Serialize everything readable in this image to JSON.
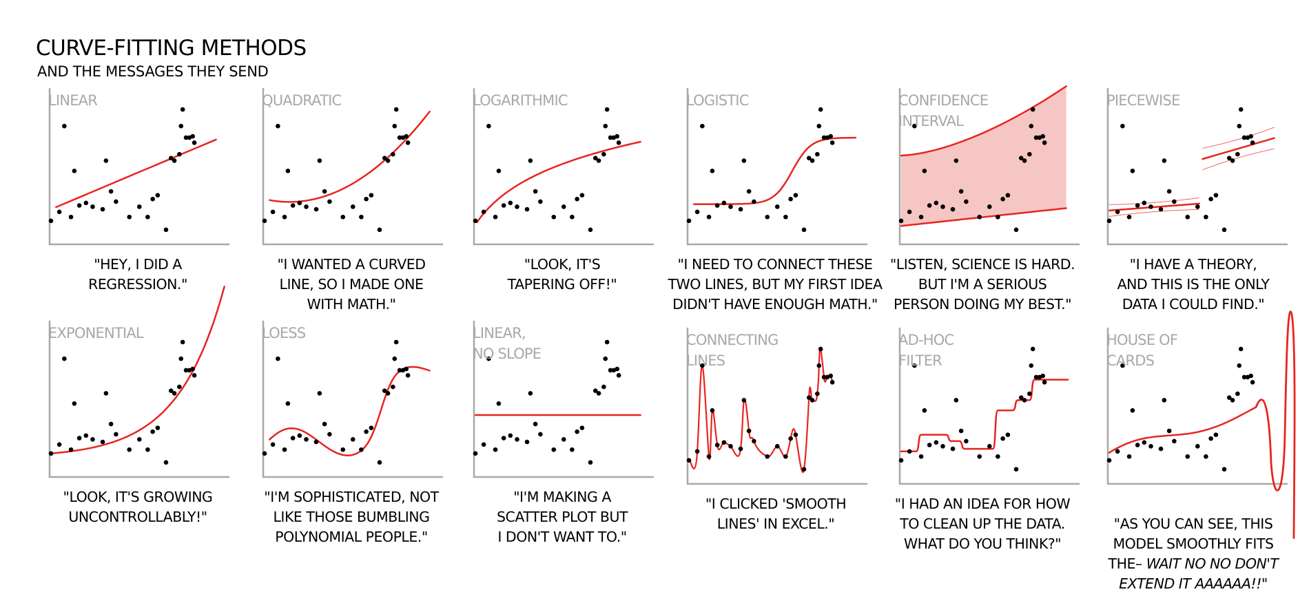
{
  "header": {
    "title": "CURVE-FITTING METHODS",
    "subtitle": "AND THE MESSAGES THEY SEND"
  },
  "colors": {
    "fit": "#e8241f",
    "band": "#f6c6c4",
    "axis": "#a8a8a8",
    "dot": "#000000",
    "label": "#a8a8a8"
  },
  "panels": [
    {
      "key": "linear",
      "title": "LINEAR",
      "caption": "\"HEY, I DID A\nREGRESSION.\""
    },
    {
      "key": "quadratic",
      "title": "QUADRATIC",
      "caption": "\"I WANTED A CURVED\nLINE, SO I MADE ONE\nWITH MATH.\""
    },
    {
      "key": "logarithmic",
      "title": "LOGARITHMIC",
      "caption": "\"LOOK, IT'S\nTAPERING OFF!\""
    },
    {
      "key": "logistic",
      "title": "LOGISTIC",
      "caption": "\"I NEED TO CONNECT THESE\nTWO LINES, BUT MY FIRST IDEA\nDIDN'T HAVE ENOUGH MATH.\""
    },
    {
      "key": "confidence",
      "title": "CONFIDENCE\nINTERVAL",
      "caption": "\"LISTEN, SCIENCE IS HARD.\nBUT I'M A SERIOUS\nPERSON DOING MY BEST.\""
    },
    {
      "key": "piecewise",
      "title": "PIECEWISE",
      "caption": "\"I HAVE A THEORY,\nAND THIS IS THE ONLY\nDATA I COULD FIND.\""
    },
    {
      "key": "exponential",
      "title": "EXPONENTIAL",
      "caption": "\"LOOK, IT'S GROWING\nUNCONTROLLABLY!\""
    },
    {
      "key": "loess",
      "title": "LOESS",
      "caption": "\"I'M SOPHISTICATED, NOT\nLIKE THOSE BUMBLING\nPOLYNOMIAL PEOPLE.\""
    },
    {
      "key": "noslope",
      "title": "LINEAR,\nNO SLOPE",
      "caption": "\"I'M MAKING A\nSCATTER PLOT BUT\nI DON'T WANT TO.\""
    },
    {
      "key": "connecting",
      "title": "CONNECTING\nLINES",
      "caption": "\"I CLICKED 'SMOOTH\nLINES' IN EXCEL.\""
    },
    {
      "key": "adhoc",
      "title": "AD-HOC\nFILTER",
      "caption": "\"I HAD AN IDEA FOR HOW\nTO CLEAN UP THE DATA.\nWHAT DO YOU THINK?\""
    },
    {
      "key": "houseofcards",
      "title": "HOUSE OF\nCARDS",
      "caption": "\"AS YOU CAN SEE, THIS\nMODEL SMOOTHLY FITS\nTHE– ",
      "caption_italic": "WAIT NO NO DON'T\nEXTEND IT AAAAAA!!\""
    }
  ],
  "chart_data": {
    "type": "scatter",
    "x": [
      0.0,
      0.05,
      0.08,
      0.12,
      0.14,
      0.17,
      0.21,
      0.25,
      0.31,
      0.33,
      0.36,
      0.39,
      0.47,
      0.53,
      0.58,
      0.61,
      0.64,
      0.69,
      0.72,
      0.74,
      0.77,
      0.78,
      0.79,
      0.81,
      0.83,
      0.85,
      0.86
    ],
    "y": [
      0.13,
      0.2,
      0.87,
      0.16,
      0.52,
      0.25,
      0.27,
      0.24,
      0.22,
      0.6,
      0.36,
      0.28,
      0.16,
      0.24,
      0.16,
      0.3,
      0.33,
      0.06,
      0.62,
      0.6,
      0.65,
      0.87,
      1.0,
      0.78,
      0.78,
      0.79,
      0.74
    ]
  }
}
